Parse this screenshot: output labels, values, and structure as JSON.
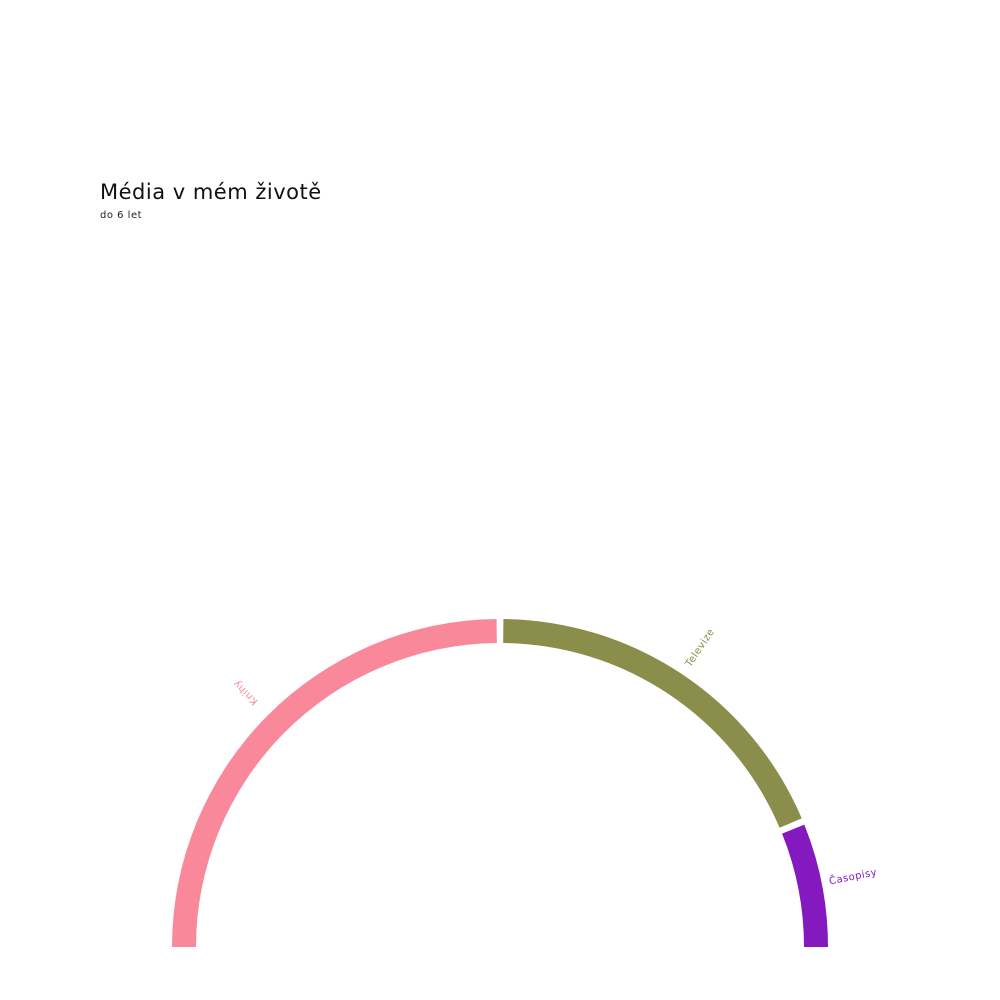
{
  "header": {
    "title": "Média v mém životě",
    "subtitle": "do 6 let"
  },
  "chart_data": {
    "type": "pie",
    "variant": "semicircle-arc",
    "categories": [
      "Knihy",
      "Televize",
      "Časopisy"
    ],
    "values": [
      50,
      37.5,
      12.5
    ],
    "colors": [
      "#f9899a",
      "#8b8d4a",
      "#8419c0"
    ],
    "legend": "none"
  }
}
